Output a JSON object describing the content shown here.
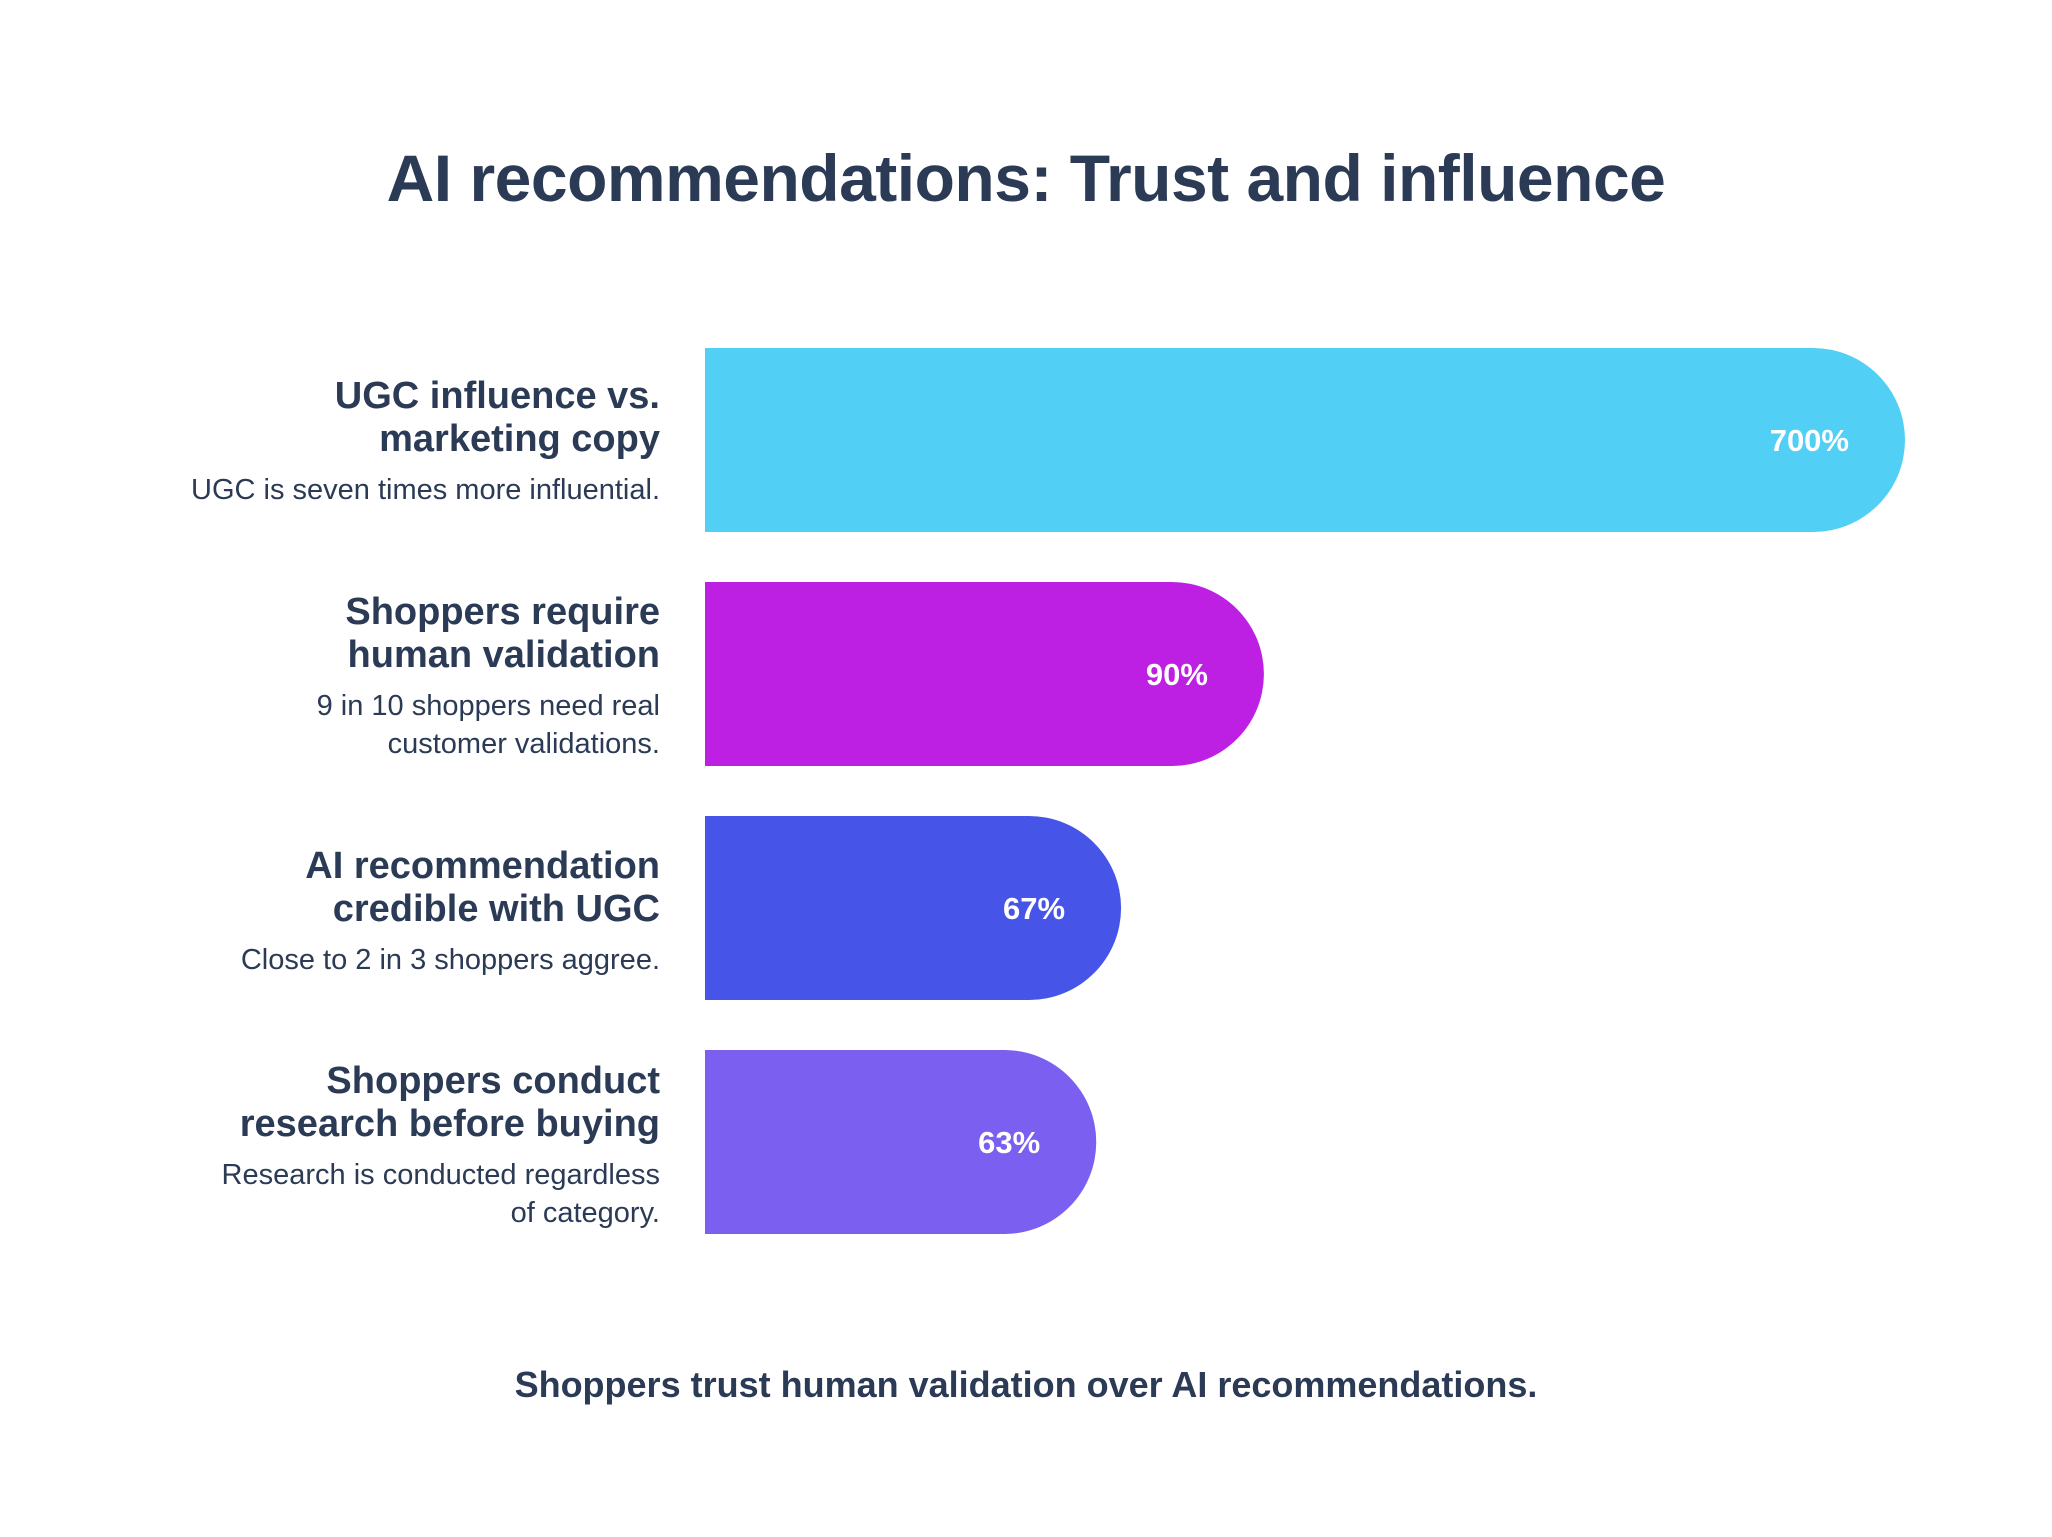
{
  "title": "AI recommendations: Trust and influence",
  "footer": "Shoppers trust human validation over AI recommendations.",
  "chart_data": {
    "type": "bar",
    "orientation": "horizontal",
    "categories": [
      "UGC influence vs. marketing copy",
      "Shoppers require human validation",
      "AI recommendation credible with UGC",
      "Shoppers conduct research before buying"
    ],
    "values": [
      700,
      90,
      67,
      63
    ],
    "value_labels": [
      "700%",
      "90%",
      "67%",
      "63%"
    ],
    "colors": [
      "#52cff4",
      "#bd20e3",
      "#4754e8",
      "#7b5ff0"
    ],
    "grid": false,
    "legend": false,
    "title": "AI recommendations: Trust and influence",
    "xlabel": "",
    "ylabel": ""
  },
  "rows": [
    {
      "heading_line1": "UGC influence vs.",
      "heading_line2": "marketing copy",
      "sub_line1": "UGC is seven times more influential.",
      "sub_line2": ""
    },
    {
      "heading_line1": "Shoppers require",
      "heading_line2": "human validation",
      "sub_line1": "9 in 10 shoppers need real",
      "sub_line2": "customer validations."
    },
    {
      "heading_line1": "AI recommendation",
      "heading_line2": "credible with UGC",
      "sub_line1": "Close to 2 in 3 shoppers aggree.",
      "sub_line2": ""
    },
    {
      "heading_line1": "Shoppers conduct",
      "heading_line2": "research before buying",
      "sub_line1": "Research is conducted regardless",
      "sub_line2": "of category."
    }
  ]
}
